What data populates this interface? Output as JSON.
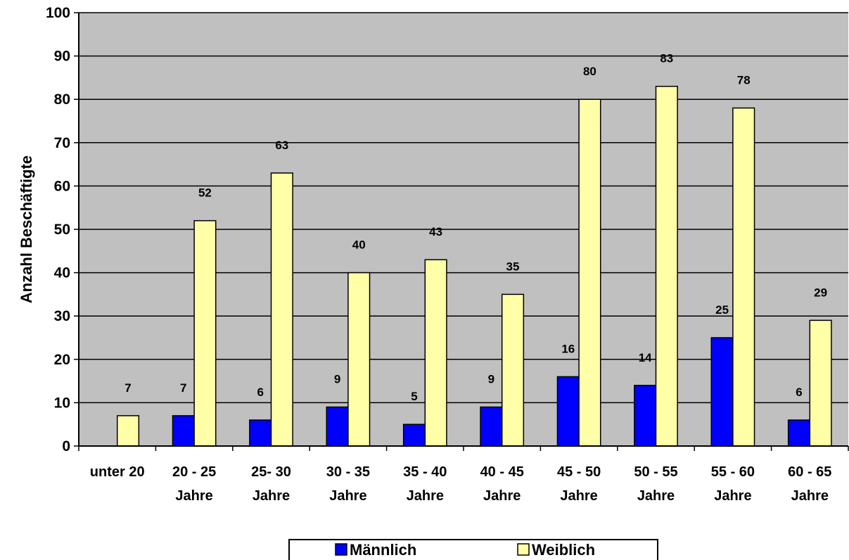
{
  "chart_data": {
    "type": "bar",
    "title": "",
    "xlabel": "",
    "ylabel": "Anzahl Beschäftigte",
    "ylim": [
      0,
      100
    ],
    "ytick_step": 10,
    "grid": true,
    "legend_position": "bottom",
    "plot_background": "#c0c0c0",
    "categories": [
      [
        "unter 20"
      ],
      [
        "20 - 25",
        "Jahre"
      ],
      [
        "25- 30",
        "Jahre"
      ],
      [
        "30 - 35",
        "Jahre"
      ],
      [
        "35 - 40",
        "Jahre"
      ],
      [
        "40 - 45",
        "Jahre"
      ],
      [
        "45 - 50",
        "Jahre"
      ],
      [
        "50 - 55",
        "Jahre"
      ],
      [
        "55 - 60",
        "Jahre"
      ],
      [
        "60 - 65",
        "Jahre"
      ]
    ],
    "series": [
      {
        "name": "Männlich",
        "color": "#0000ff",
        "values": [
          null,
          7,
          6,
          9,
          5,
          9,
          16,
          14,
          25,
          6
        ]
      },
      {
        "name": "Weiblich",
        "color": "#ffffa8",
        "values": [
          7,
          52,
          63,
          40,
          43,
          35,
          80,
          83,
          78,
          29
        ]
      }
    ]
  }
}
